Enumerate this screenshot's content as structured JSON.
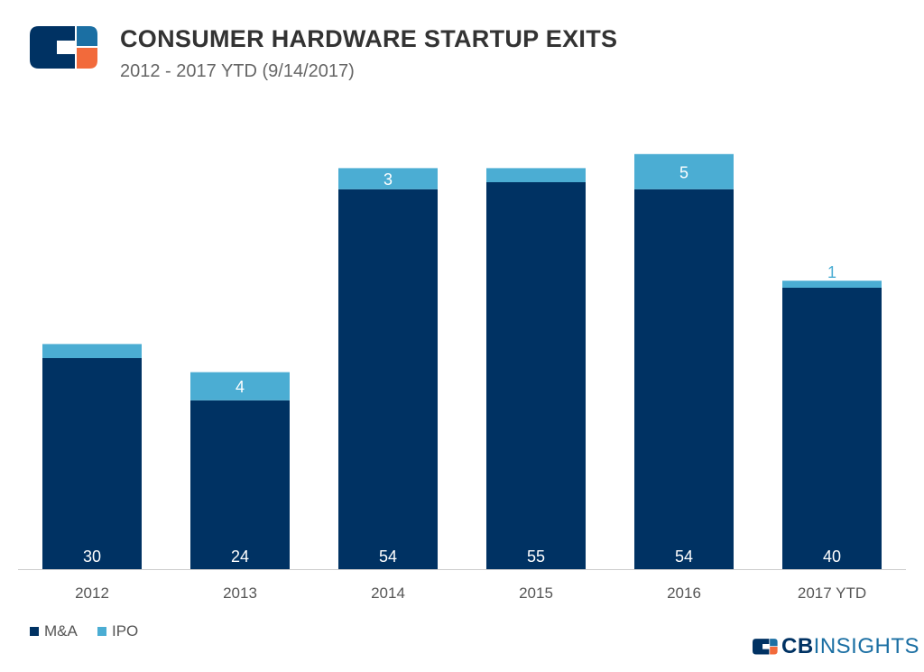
{
  "header": {
    "title": "CONSUMER HARDWARE STARTUP EXITS",
    "subtitle": "2012 - 2017 YTD (9/14/2017)"
  },
  "brand": {
    "name_bold": "CB",
    "name_rest": "INSIGHTS"
  },
  "colors": {
    "ma": "#003263",
    "ipo": "#4badd3",
    "logo_orange": "#f26a3b",
    "logo_blue": "#1b6fa3"
  },
  "chart_data": {
    "type": "bar",
    "stacked": true,
    "categories": [
      "2012",
      "2013",
      "2014",
      "2015",
      "2016",
      "2017 YTD"
    ],
    "series": [
      {
        "name": "M&A",
        "values": [
          30,
          24,
          54,
          55,
          54,
          40
        ]
      },
      {
        "name": "IPO",
        "values": [
          2,
          4,
          3,
          2,
          5,
          1
        ]
      }
    ],
    "ylim": [
      0,
      60
    ],
    "grid": false,
    "legend": "bottom-left"
  }
}
